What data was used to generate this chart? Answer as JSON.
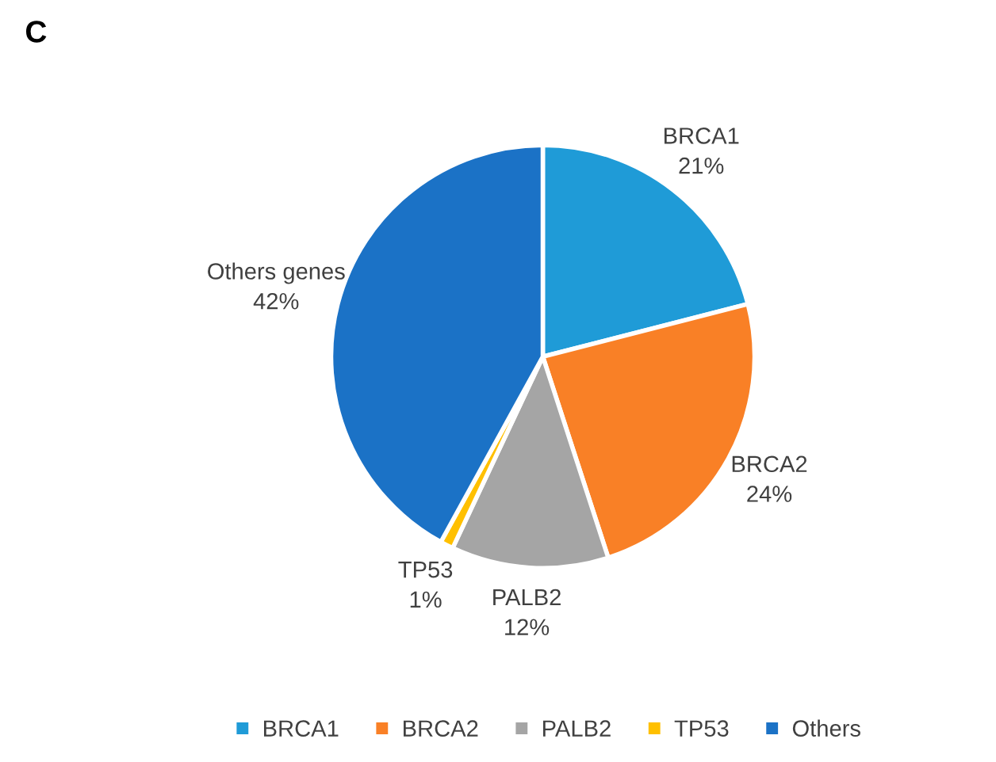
{
  "chart_data": {
    "type": "pie",
    "title": "C",
    "categories": [
      "BRCA1",
      "BRCA2",
      "PALB2",
      "TP53",
      "Others"
    ],
    "values": [
      21,
      24,
      12,
      1,
      42
    ],
    "colors": [
      "#1f9bd7",
      "#f98026",
      "#a5a5a5",
      "#ffc000",
      "#1b72c6"
    ],
    "value_labels": [
      "BRCA1\n21%",
      "BRCA2\n24%",
      "PALB2\n12%",
      "TP53\n1%",
      "Others genes\n42%"
    ],
    "legend": "bottom"
  }
}
